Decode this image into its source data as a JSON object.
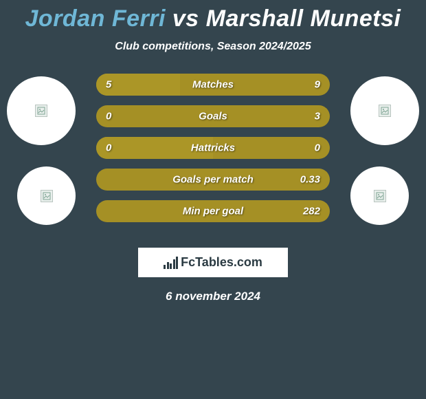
{
  "background_color": "#34454e",
  "title": {
    "player1": "Jordan Ferri",
    "vs": "vs",
    "player2": "Marshall Munetsi",
    "player1_color": "#6fb7d6",
    "vs_color": "#ffffff",
    "player2_color": "#ffffff",
    "fontsize": 34
  },
  "subtitle": {
    "text": "Club competitions, Season 2024/2025",
    "color": "#ffffff",
    "fontsize": 16
  },
  "circles": {
    "fill": "#ffffff",
    "placeholder_border": "#b8c4bf",
    "placeholder_fill": "#e9efec"
  },
  "bars": {
    "track_color": "#a59025",
    "fill_color": "#ab9627",
    "text_color": "#ffffff",
    "height": 32,
    "radius": 16,
    "fontsize": 15,
    "rows": [
      {
        "label": "Matches",
        "left": "5",
        "right": "9",
        "fill_pct": 36
      },
      {
        "label": "Goals",
        "left": "0",
        "right": "3",
        "fill_pct": 0
      },
      {
        "label": "Hattricks",
        "left": "0",
        "right": "0",
        "fill_pct": 50
      },
      {
        "label": "Goals per match",
        "left": "",
        "right": "0.33",
        "fill_pct": 0
      },
      {
        "label": "Min per goal",
        "left": "",
        "right": "282",
        "fill_pct": 0
      }
    ]
  },
  "footer": {
    "logo_text": "FcTables.com",
    "logo_bg": "#ffffff",
    "logo_color": "#2a3a42",
    "date": "6 november 2024",
    "date_color": "#ffffff",
    "date_fontsize": 17
  }
}
